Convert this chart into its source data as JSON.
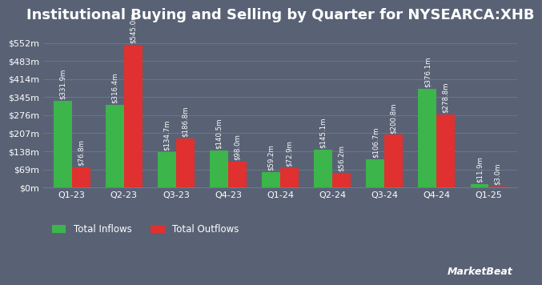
{
  "title": "Institutional Buying and Selling by Quarter for NYSEARCA:XHB",
  "quarters": [
    "Q1-23",
    "Q2-23",
    "Q3-23",
    "Q4-23",
    "Q1-24",
    "Q2-24",
    "Q3-24",
    "Q4-24",
    "Q1-25"
  ],
  "inflows": [
    331.9,
    316.4,
    134.7,
    140.5,
    59.2,
    145.1,
    106.7,
    376.1,
    11.9
  ],
  "outflows": [
    76.8,
    545.0,
    186.8,
    98.0,
    72.9,
    56.2,
    200.8,
    278.8,
    3.0
  ],
  "inflow_labels": [
    "$331.9m",
    "$316.4m",
    "$134.7m",
    "$140.5m",
    "$59.2m",
    "$145.1m",
    "$106.7m",
    "$376.1m",
    "$11.9m"
  ],
  "outflow_labels": [
    "$76.8m",
    "$545.0m",
    "$186.8m",
    "$98.0m",
    "$72.9m",
    "$56.2m",
    "$200.8m",
    "$278.8m",
    "$3.0m"
  ],
  "inflow_color": "#3cb54a",
  "outflow_color": "#e03030",
  "background_color": "#596275",
  "plot_bg_color": "#596275",
  "grid_color": "#6b7a8d",
  "text_color": "#ffffff",
  "title_fontsize": 13,
  "label_fontsize": 6.2,
  "tick_fontsize": 8,
  "legend_fontsize": 8.5,
  "ytick_labels": [
    "$0m",
    "$69m",
    "$138m",
    "$207m",
    "$276m",
    "$345m",
    "$414m",
    "$483m",
    "$552m"
  ],
  "ytick_values": [
    0,
    69,
    138,
    207,
    276,
    345,
    414,
    483,
    552
  ],
  "ylim": [
    0,
    600
  ],
  "bar_width": 0.35,
  "watermark": "MarketBeat"
}
